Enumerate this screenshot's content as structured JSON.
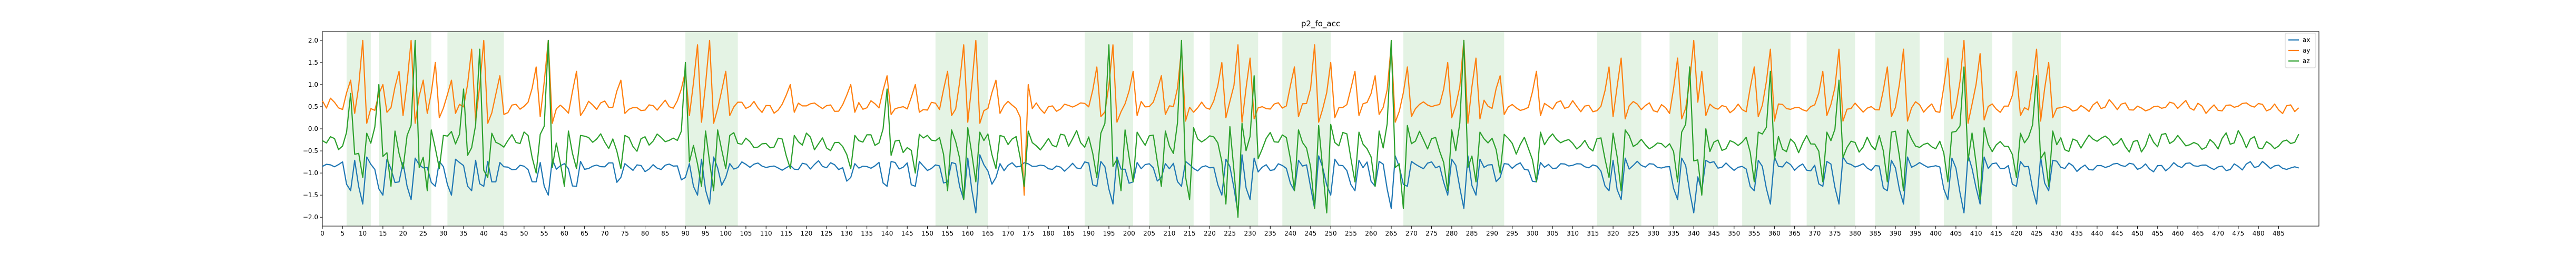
{
  "chart_data": {
    "type": "line",
    "title": "p2_fo_acc",
    "xlabel": "",
    "ylabel": "",
    "xlim": [
      0,
      495
    ],
    "ylim": [
      -2.2,
      2.2
    ],
    "x_ticks": [
      0,
      5,
      10,
      15,
      20,
      25,
      30,
      35,
      40,
      45,
      50,
      55,
      60,
      65,
      70,
      75,
      80,
      85,
      90,
      95,
      100,
      105,
      110,
      115,
      120,
      125,
      130,
      135,
      140,
      145,
      150,
      155,
      160,
      165,
      170,
      175,
      180,
      185,
      190,
      195,
      200,
      205,
      210,
      215,
      220,
      225,
      230,
      235,
      240,
      245,
      250,
      255,
      260,
      265,
      270,
      275,
      280,
      285,
      290,
      295,
      300,
      305,
      310,
      315,
      320,
      325,
      330,
      335,
      340,
      345,
      350,
      355,
      360,
      365,
      370,
      375,
      380,
      385,
      390,
      395,
      400,
      405,
      410,
      415,
      420,
      425,
      430,
      435,
      440,
      445,
      450,
      455,
      460,
      465,
      470,
      475,
      480,
      485
    ],
    "y_ticks": [
      -2.0,
      -1.5,
      -1.0,
      -0.5,
      0.0,
      0.5,
      1.0,
      1.5,
      2.0
    ],
    "y_tick_labels": [
      "−2.0",
      "−1.5",
      "−1.0",
      "−0.5",
      "0.0",
      "0.5",
      "1.0",
      "1.5",
      "2.0"
    ],
    "grid": false,
    "legend_position": "top-right",
    "colors": {
      "ax": "#1f77b4",
      "ay": "#ff7f0e",
      "az": "#2ca02c",
      "shade": "#2ca02c"
    },
    "shaded_regions": [
      [
        6,
        12
      ],
      [
        14,
        27
      ],
      [
        31,
        45
      ],
      [
        90,
        103
      ],
      [
        152,
        165
      ],
      [
        189,
        201
      ],
      [
        205,
        216
      ],
      [
        220,
        232
      ],
      [
        238,
        250
      ],
      [
        268,
        282
      ],
      [
        282,
        287
      ],
      [
        287,
        293
      ],
      [
        316,
        327
      ],
      [
        334,
        346
      ],
      [
        352,
        364
      ],
      [
        368,
        380
      ],
      [
        385,
        396
      ],
      [
        402,
        414
      ],
      [
        419,
        431
      ]
    ],
    "series": [
      {
        "name": "ax",
        "spikes": [
          [
            7,
            -1.4
          ],
          [
            10,
            -1.7
          ],
          [
            15,
            -1.5
          ],
          [
            19,
            -1.2
          ],
          [
            22,
            -1.6
          ],
          [
            28,
            -1.3
          ],
          [
            32,
            -1.5
          ],
          [
            37,
            -1.4
          ],
          [
            40,
            -1.3
          ],
          [
            43,
            -1.2
          ],
          [
            53,
            -1.2
          ],
          [
            56,
            -1.5
          ],
          [
            63,
            -1.3
          ],
          [
            74,
            -1.1
          ],
          [
            90,
            -1.1
          ],
          [
            93,
            -1.5
          ],
          [
            96,
            -1.7
          ],
          [
            100,
            -1.1
          ],
          [
            131,
            -1.1
          ],
          [
            140,
            -1.3
          ],
          [
            147,
            -1.3
          ],
          [
            155,
            -1.2
          ],
          [
            159,
            -1.6
          ],
          [
            162,
            -1.9
          ],
          [
            167,
            -1.1
          ],
          [
            192,
            -1.3
          ],
          [
            196,
            -1.7
          ],
          [
            201,
            -1.2
          ],
          [
            208,
            -1.1
          ],
          [
            213,
            -1.3
          ],
          [
            223,
            -1.5
          ],
          [
            227,
            -1.9
          ],
          [
            230,
            -1.6
          ],
          [
            241,
            -1.4
          ],
          [
            246,
            -1.8
          ],
          [
            250,
            -1.5
          ],
          [
            256,
            -1.4
          ],
          [
            261,
            -1.3
          ],
          [
            265,
            -1.8
          ],
          [
            269,
            -1.3
          ],
          [
            279,
            -1.5
          ],
          [
            283,
            -1.8
          ],
          [
            286,
            -1.5
          ],
          [
            292,
            -1.1
          ],
          [
            301,
            -1.2
          ],
          [
            319,
            -1.4
          ],
          [
            322,
            -1.6
          ],
          [
            336,
            -1.6
          ],
          [
            340,
            -1.9
          ],
          [
            342,
            -1.4
          ],
          [
            355,
            -1.4
          ],
          [
            359,
            -1.7
          ],
          [
            372,
            -1.3
          ],
          [
            376,
            -1.7
          ],
          [
            388,
            -1.4
          ],
          [
            392,
            -1.7
          ],
          [
            403,
            -1.6
          ],
          [
            407,
            -1.9
          ],
          [
            411,
            -1.7
          ],
          [
            420,
            -1.3
          ],
          [
            425,
            -1.7
          ],
          [
            428,
            -1.4
          ]
        ]
      },
      {
        "name": "ay",
        "spikes": [
          [
            3,
            0.6
          ],
          [
            7,
            1.1
          ],
          [
            10,
            2.0
          ],
          [
            15,
            1.0
          ],
          [
            19,
            1.3
          ],
          [
            22,
            2.0
          ],
          [
            25,
            1.1
          ],
          [
            28,
            1.5
          ],
          [
            32,
            1.1
          ],
          [
            37,
            1.8
          ],
          [
            40,
            2.0
          ],
          [
            44,
            1.2
          ],
          [
            53,
            1.4
          ],
          [
            56,
            2.0
          ],
          [
            63,
            1.3
          ],
          [
            74,
            1.1
          ],
          [
            90,
            1.3
          ],
          [
            93,
            1.9
          ],
          [
            96,
            2.0
          ],
          [
            100,
            1.3
          ],
          [
            116,
            1.0
          ],
          [
            131,
            1.0
          ],
          [
            140,
            1.2
          ],
          [
            147,
            1.0
          ],
          [
            155,
            1.3
          ],
          [
            159,
            1.9
          ],
          [
            162,
            2.0
          ],
          [
            167,
            1.1
          ],
          [
            174,
            -1.5
          ],
          [
            192,
            1.4
          ],
          [
            196,
            1.9
          ],
          [
            201,
            1.3
          ],
          [
            208,
            1.2
          ],
          [
            213,
            1.8
          ],
          [
            223,
            1.5
          ],
          [
            227,
            1.9
          ],
          [
            230,
            1.6
          ],
          [
            241,
            1.4
          ],
          [
            246,
            1.9
          ],
          [
            250,
            1.5
          ],
          [
            256,
            1.3
          ],
          [
            261,
            1.2
          ],
          [
            265,
            1.9
          ],
          [
            269,
            1.4
          ],
          [
            279,
            1.5
          ],
          [
            283,
            2.0
          ],
          [
            286,
            1.6
          ],
          [
            292,
            1.2
          ],
          [
            301,
            1.3
          ],
          [
            319,
            1.4
          ],
          [
            322,
            1.6
          ],
          [
            336,
            1.6
          ],
          [
            340,
            2.0
          ],
          [
            342,
            1.3
          ],
          [
            355,
            1.4
          ],
          [
            359,
            1.8
          ],
          [
            372,
            1.3
          ],
          [
            376,
            1.8
          ],
          [
            388,
            1.4
          ],
          [
            392,
            1.8
          ],
          [
            403,
            1.6
          ],
          [
            407,
            2.0
          ],
          [
            411,
            1.7
          ],
          [
            420,
            1.3
          ],
          [
            425,
            1.8
          ],
          [
            428,
            1.5
          ]
        ]
      },
      {
        "name": "az",
        "spikes": [
          [
            7,
            0.8
          ],
          [
            10,
            -1.1
          ],
          [
            14,
            1.0
          ],
          [
            17,
            -1.3
          ],
          [
            20,
            -0.9
          ],
          [
            23,
            2.0
          ],
          [
            26,
            -1.4
          ],
          [
            29,
            -0.9
          ],
          [
            35,
            0.9
          ],
          [
            39,
            1.8
          ],
          [
            41,
            -1.1
          ],
          [
            53,
            -1.0
          ],
          [
            56,
            2.0
          ],
          [
            60,
            -1.3
          ],
          [
            63,
            -0.9
          ],
          [
            74,
            -0.9
          ],
          [
            90,
            1.5
          ],
          [
            94,
            -1.3
          ],
          [
            97,
            -1.4
          ],
          [
            100,
            -0.9
          ],
          [
            116,
            -0.9
          ],
          [
            131,
            -0.9
          ],
          [
            140,
            0.9
          ],
          [
            147,
            -1.0
          ],
          [
            155,
            -1.4
          ],
          [
            159,
            -1.6
          ],
          [
            162,
            -1.2
          ],
          [
            167,
            -0.9
          ],
          [
            174,
            -1.3
          ],
          [
            192,
            -1.1
          ],
          [
            195,
            1.9
          ],
          [
            198,
            -1.4
          ],
          [
            201,
            -1.2
          ],
          [
            208,
            -1.3
          ],
          [
            213,
            2.0
          ],
          [
            215,
            -1.6
          ],
          [
            224,
            -1.7
          ],
          [
            227,
            -2.0
          ],
          [
            231,
            1.2
          ],
          [
            241,
            -1.4
          ],
          [
            246,
            -1.8
          ],
          [
            249,
            -1.9
          ],
          [
            256,
            -1.2
          ],
          [
            261,
            -1.3
          ],
          [
            265,
            2.0
          ],
          [
            268,
            -1.8
          ],
          [
            279,
            -1.4
          ],
          [
            283,
            2.0
          ],
          [
            286,
            -1.2
          ],
          [
            292,
            -1.0
          ],
          [
            301,
            -1.2
          ],
          [
            319,
            -1.1
          ],
          [
            322,
            -1.4
          ],
          [
            336,
            -1.2
          ],
          [
            339,
            1.4
          ],
          [
            342,
            -1.5
          ],
          [
            355,
            -1.2
          ],
          [
            359,
            1.3
          ],
          [
            372,
            -1.2
          ],
          [
            376,
            1.1
          ],
          [
            388,
            -1.2
          ],
          [
            392,
            -1.4
          ],
          [
            403,
            -1.2
          ],
          [
            407,
            1.4
          ],
          [
            411,
            -1.6
          ],
          [
            420,
            -1.1
          ],
          [
            425,
            1.2
          ],
          [
            428,
            -1.3
          ]
        ]
      }
    ]
  }
}
